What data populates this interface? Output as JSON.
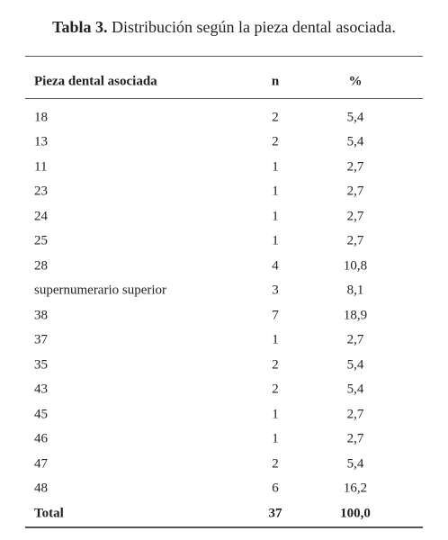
{
  "title": {
    "label": "Tabla 3.",
    "text": "Distribución según la pieza dental asociada."
  },
  "table": {
    "header": [
      "Pieza dental asociada",
      "n",
      "%"
    ],
    "rows": [
      [
        "18",
        "2",
        "5,4"
      ],
      [
        "13",
        "2",
        "5,4"
      ],
      [
        "11",
        "1",
        "2,7"
      ],
      [
        "23",
        "1",
        "2,7"
      ],
      [
        "24",
        "1",
        "2,7"
      ],
      [
        "25",
        "1",
        "2,7"
      ],
      [
        "28",
        "4",
        "10,8"
      ],
      [
        "supernumerario superior",
        "3",
        "8,1"
      ],
      [
        "38",
        "7",
        "18,9"
      ],
      [
        "37",
        "1",
        "2,7"
      ],
      [
        "35",
        "2",
        "5,4"
      ],
      [
        "43",
        "2",
        "5,4"
      ],
      [
        "45",
        "1",
        "2,7"
      ],
      [
        "46",
        "1",
        "2,7"
      ],
      [
        "47",
        "2",
        "5,4"
      ],
      [
        "48",
        "6",
        "16,2"
      ]
    ],
    "total": [
      "Total",
      "37",
      "100,0"
    ]
  }
}
